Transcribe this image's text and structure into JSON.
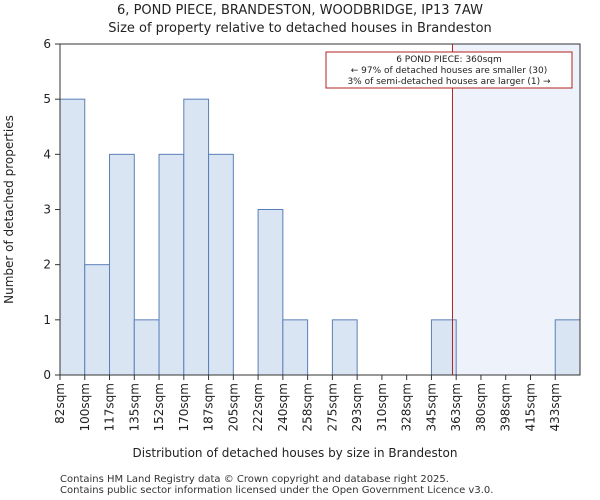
{
  "header": {
    "title": "6, POND PIECE, BRANDESTON, WOODBRIDGE, IP13 7AW",
    "subtitle": "Size of property relative to detached houses in Brandeston"
  },
  "chart_data": {
    "type": "bar",
    "title": "6, POND PIECE, BRANDESTON, WOODBRIDGE, IP13 7AW",
    "subtitle": "Size of property relative to detached houses in Brandeston",
    "xlabel": "Distribution of detached houses by size in Brandeston",
    "ylabel": "Number of detached properties",
    "categories": [
      "82sqm",
      "100sqm",
      "117sqm",
      "135sqm",
      "152sqm",
      "170sqm",
      "187sqm",
      "205sqm",
      "222sqm",
      "240sqm",
      "258sqm",
      "275sqm",
      "293sqm",
      "310sqm",
      "328sqm",
      "345sqm",
      "363sqm",
      "380sqm",
      "398sqm",
      "415sqm",
      "433sqm"
    ],
    "values": [
      5,
      2,
      4,
      1,
      4,
      5,
      4,
      0,
      3,
      1,
      0,
      1,
      0,
      0,
      0,
      1,
      0,
      0,
      0,
      0,
      1
    ],
    "ylim": [
      0,
      6
    ],
    "yticks": [
      0,
      1,
      2,
      3,
      4,
      5,
      6
    ],
    "property_marker": {
      "value_sqm": 360,
      "position_bins": 15.85,
      "color": "#b22222"
    },
    "annotation": {
      "lines": [
        "6 POND PIECE: 360sqm",
        "← 97% of detached houses are smaller (30)",
        "3% of semi-detached houses are larger (1) →"
      ],
      "placement": "top-right"
    },
    "colors": {
      "bar_fill": "#dae5f4",
      "bar_stroke": "#5b7fb8",
      "highlight_region": "#eef3fb",
      "marker": "#b22222"
    }
  },
  "footer": {
    "line1": "Contains HM Land Registry data © Crown copyright and database right 2025.",
    "line2": "Contains public sector information licensed under the Open Government Licence v3.0."
  }
}
